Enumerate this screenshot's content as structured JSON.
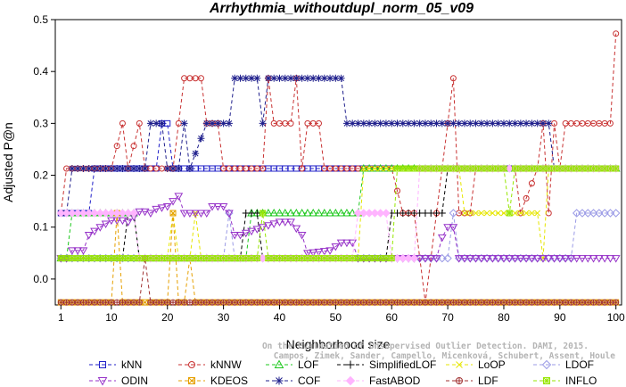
{
  "chart_data": {
    "type": "line",
    "title": "Arrhythmia_withoutdupl_norm_05_v09",
    "xlabel": "Neighborhood size",
    "ylabel": "Adjusted P@n",
    "xlim": [
      0,
      101
    ],
    "ylim": [
      -0.05,
      0.5
    ],
    "xticks": [
      1,
      10,
      20,
      30,
      40,
      50,
      60,
      70,
      80,
      90,
      100
    ],
    "yticks": [
      0.0,
      0.1,
      0.2,
      0.3,
      0.4,
      0.5
    ],
    "ytick_labels": [
      "0.0",
      "0.1",
      "0.2",
      "0.3",
      "0.4",
      "0.5"
    ],
    "grid": false,
    "legend_position": "bottom",
    "watermark": [
      "Campos, Zimek, Sander, Campello, Micenková, Schubert, Assent, Houle",
      "On the Evaluation of Unsupervised Outlier Detection. DAMI, 2015."
    ],
    "series": [
      {
        "name": "kNN",
        "color": "#1f1fc8",
        "marker": "square",
        "points": [
          [
            1,
            0.127
          ],
          [
            6,
            0.127
          ],
          [
            7,
            0.213
          ],
          [
            18,
            0.213
          ],
          [
            19,
            0.3
          ],
          [
            20,
            0.3
          ],
          [
            21,
            0.213
          ],
          [
            100,
            0.213
          ]
        ]
      },
      {
        "name": "kNNW",
        "color": "#c83232",
        "marker": "circle",
        "points": [
          [
            1,
            0.127
          ],
          [
            2,
            0.213
          ],
          [
            10,
            0.213
          ],
          [
            12,
            0.3
          ],
          [
            13,
            0.213
          ],
          [
            15,
            0.3
          ],
          [
            16,
            0.213
          ],
          [
            21,
            0.213
          ],
          [
            22,
            0.3
          ],
          [
            23,
            0.387
          ],
          [
            26,
            0.387
          ],
          [
            27,
            0.3
          ],
          [
            29,
            0.3
          ],
          [
            30,
            0.213
          ],
          [
            37,
            0.213
          ],
          [
            38,
            0.387
          ],
          [
            39,
            0.3
          ],
          [
            42,
            0.3
          ],
          [
            43,
            0.387
          ],
          [
            44,
            0.213
          ],
          [
            45,
            0.3
          ],
          [
            47,
            0.3
          ],
          [
            48,
            0.213
          ],
          [
            60,
            0.213
          ],
          [
            62,
            0.127
          ],
          [
            64,
            0.127
          ],
          [
            66,
            -0.045
          ],
          [
            68,
            0.127
          ],
          [
            70,
            0.3
          ],
          [
            71,
            0.387
          ],
          [
            72,
            0.127
          ],
          [
            74,
            0.127
          ],
          [
            75,
            0.213
          ],
          [
            82,
            0.213
          ],
          [
            83,
            0.127
          ],
          [
            86,
            0.213
          ],
          [
            87,
            0.3
          ],
          [
            88,
            0.127
          ],
          [
            89,
            0.3
          ],
          [
            90,
            0.213
          ],
          [
            91,
            0.3
          ],
          [
            99,
            0.3
          ],
          [
            100,
            0.473
          ]
        ]
      },
      {
        "name": "LOF",
        "color": "#1ec81e",
        "marker": "triangle-up",
        "points": [
          [
            1,
            0.04
          ],
          [
            2,
            0.04
          ],
          [
            3,
            0.127
          ],
          [
            14,
            0.127
          ],
          [
            15,
            0.04
          ],
          [
            34,
            0.04
          ],
          [
            35,
            0.127
          ],
          [
            54,
            0.127
          ],
          [
            55,
            0.213
          ],
          [
            100,
            0.213
          ]
        ]
      },
      {
        "name": "SimplifiedLOF",
        "color": "#000000",
        "marker": "plus",
        "points": [
          [
            1,
            0.04
          ],
          [
            12,
            0.04
          ],
          [
            13,
            0.127
          ],
          [
            14,
            0.127
          ],
          [
            15,
            0.04
          ],
          [
            33,
            0.04
          ],
          [
            34,
            0.127
          ],
          [
            36,
            0.127
          ],
          [
            37,
            0.04
          ],
          [
            53,
            0.04
          ],
          [
            54,
            0.04
          ],
          [
            59,
            0.04
          ],
          [
            60,
            0.127
          ],
          [
            69,
            0.127
          ],
          [
            70,
            0.213
          ],
          [
            100,
            0.213
          ]
        ]
      },
      {
        "name": "LoOP",
        "color": "#e6e600",
        "marker": "x",
        "points": [
          [
            1,
            0.04
          ],
          [
            20,
            0.04
          ],
          [
            21,
            0.127
          ],
          [
            22,
            0.04
          ],
          [
            24,
            0.04
          ],
          [
            25,
            0.127
          ],
          [
            26,
            0.04
          ],
          [
            54,
            0.04
          ],
          [
            55,
            0.213
          ],
          [
            72,
            0.213
          ],
          [
            73,
            0.127
          ],
          [
            86,
            0.127
          ],
          [
            87,
            0.04
          ],
          [
            88,
            0.213
          ],
          [
            100,
            0.213
          ]
        ]
      },
      {
        "name": "LDOF",
        "color": "#9b9be6",
        "marker": "diamond",
        "points": [
          [
            1,
            0.04
          ],
          [
            30,
            0.04
          ],
          [
            31,
            0.127
          ],
          [
            32,
            0.04
          ],
          [
            70,
            0.04
          ],
          [
            71,
            0.127
          ],
          [
            72,
            0.04
          ],
          [
            92,
            0.04
          ],
          [
            93,
            0.127
          ],
          [
            100,
            0.127
          ]
        ]
      },
      {
        "name": "ODIN",
        "color": "#9632c8",
        "marker": "triangle-down",
        "points": [
          [
            1,
            0.04
          ],
          [
            2,
            0.04
          ],
          [
            3,
            0.055
          ],
          [
            5,
            0.055
          ],
          [
            6,
            0.085
          ],
          [
            8,
            0.1
          ],
          [
            10,
            0.113
          ],
          [
            12,
            0.113
          ],
          [
            13,
            0.11
          ],
          [
            15,
            0.13
          ],
          [
            16,
            0.13
          ],
          [
            17,
            0.127
          ],
          [
            18,
            0.135
          ],
          [
            20,
            0.14
          ],
          [
            21,
            0.15
          ],
          [
            22,
            0.16
          ],
          [
            23,
            0.127
          ],
          [
            27,
            0.127
          ],
          [
            28,
            0.14
          ],
          [
            30,
            0.14
          ],
          [
            31,
            0.127
          ],
          [
            32,
            0.085
          ],
          [
            33,
            0.085
          ],
          [
            37,
            0.1
          ],
          [
            40,
            0.11
          ],
          [
            42,
            0.11
          ],
          [
            44,
            0.085
          ],
          [
            45,
            0.05
          ],
          [
            49,
            0.055
          ],
          [
            51,
            0.07
          ],
          [
            53,
            0.07
          ],
          [
            54,
            0.04
          ],
          [
            68,
            0.04
          ],
          [
            69,
            0.08
          ],
          [
            70,
            0.1
          ],
          [
            71,
            0.1
          ],
          [
            72,
            0.04
          ],
          [
            100,
            0.04
          ]
        ]
      },
      {
        "name": "KDEOS",
        "color": "#e6a000",
        "marker": "square-x",
        "points": [
          [
            1,
            -0.045
          ],
          [
            10,
            -0.045
          ],
          [
            11,
            0.127
          ],
          [
            12,
            -0.045
          ],
          [
            20,
            -0.045
          ],
          [
            21,
            0.127
          ],
          [
            22,
            -0.045
          ],
          [
            23,
            -0.045
          ],
          [
            24,
            0.04
          ],
          [
            25,
            -0.045
          ],
          [
            100,
            -0.045
          ]
        ]
      },
      {
        "name": "COF",
        "color": "#1f1f8c",
        "marker": "star",
        "points": [
          [
            1,
            0.127
          ],
          [
            2,
            0.127
          ],
          [
            3,
            0.213
          ],
          [
            16,
            0.213
          ],
          [
            17,
            0.3
          ],
          [
            19,
            0.3
          ],
          [
            20,
            0.213
          ],
          [
            22,
            0.213
          ],
          [
            23,
            0.3
          ],
          [
            24,
            0.213
          ],
          [
            27,
            0.3
          ],
          [
            31,
            0.3
          ],
          [
            32,
            0.387
          ],
          [
            36,
            0.387
          ],
          [
            37,
            0.3
          ],
          [
            38,
            0.387
          ],
          [
            51,
            0.387
          ],
          [
            52,
            0.3
          ],
          [
            88,
            0.3
          ],
          [
            89,
            0.213
          ],
          [
            100,
            0.213
          ]
        ]
      },
      {
        "name": "FastABOD",
        "color": "#ffb4ff",
        "marker": "diamond-filled",
        "points": [
          [
            1,
            0.127
          ],
          [
            14,
            0.127
          ],
          [
            15,
            0.04
          ],
          [
            53,
            0.04
          ],
          [
            54,
            0.127
          ],
          [
            59,
            0.127
          ],
          [
            60,
            0.04
          ],
          [
            64,
            0.04
          ],
          [
            65,
            0.213
          ],
          [
            100,
            0.213
          ]
        ]
      },
      {
        "name": "LDF",
        "color": "#a03232",
        "marker": "circle-plus",
        "points": [
          [
            1,
            -0.045
          ],
          [
            15,
            -0.045
          ],
          [
            16,
            0.04
          ],
          [
            17,
            -0.045
          ],
          [
            100,
            -0.045
          ]
        ]
      },
      {
        "name": "INFLO",
        "color": "#96e600",
        "marker": "square-star",
        "points": [
          [
            1,
            0.04
          ],
          [
            36,
            0.04
          ],
          [
            37,
            0.127
          ],
          [
            38,
            0.04
          ],
          [
            60,
            0.04
          ],
          [
            61,
            0.213
          ],
          [
            80,
            0.213
          ],
          [
            81,
            0.127
          ],
          [
            82,
            0.213
          ],
          [
            100,
            0.213
          ]
        ]
      }
    ]
  }
}
